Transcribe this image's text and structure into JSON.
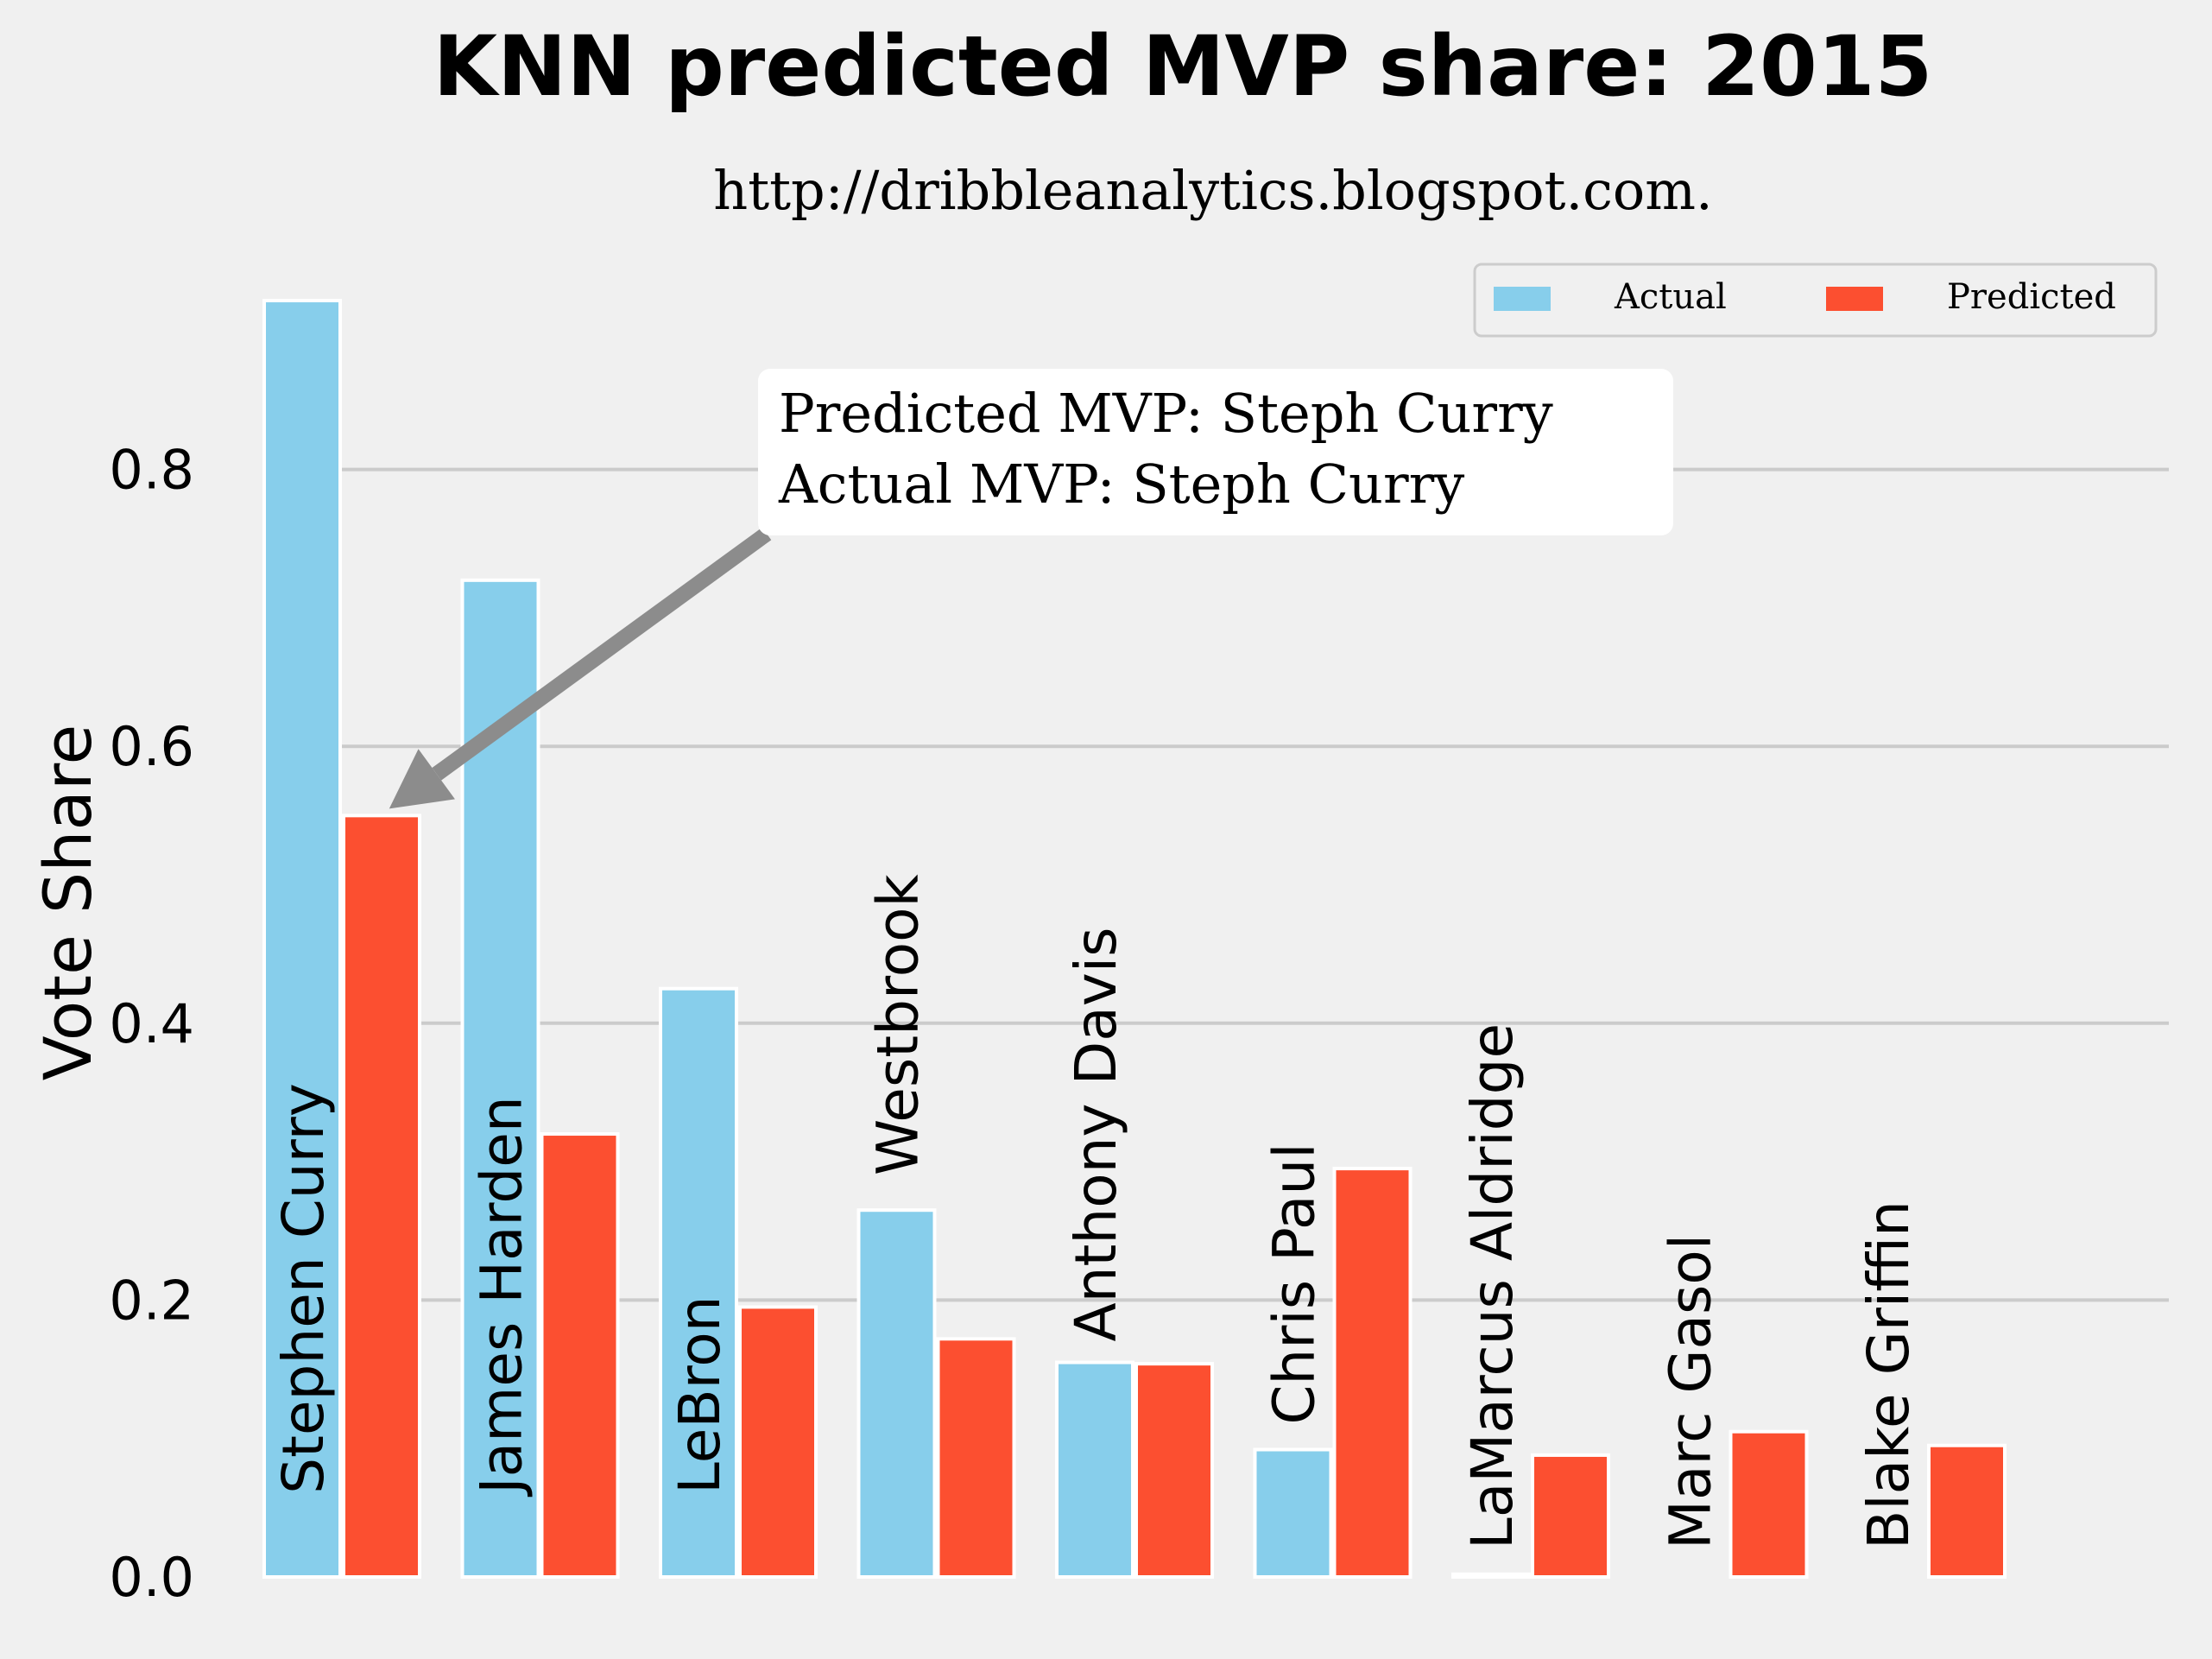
{
  "chart_data": {
    "type": "bar",
    "title": "KNN predicted MVP share: 2015",
    "subtitle": "http://dribbleanalytics.blogspot.com.",
    "xlabel": "",
    "ylabel": "Vote Share",
    "ylim": [
      0,
      0.98
    ],
    "yticks": [
      0.0,
      0.2,
      0.4,
      0.6,
      0.8
    ],
    "ytick_labels": [
      "0.0",
      "0.2",
      "0.4",
      "0.6",
      "0.8"
    ],
    "grid": "y",
    "legend_placement": "top-right",
    "categories": [
      "Stephen Curry",
      "James Harden",
      "LeBron",
      "Westbrook",
      "Anthony Davis",
      "Chris Paul",
      "LaMarcus Aldridge",
      "Marc Gasol",
      "Blake Griffin"
    ],
    "series": [
      {
        "name": "Actual",
        "color": "#87ceeb",
        "values": [
          0.922,
          0.72,
          0.425,
          0.265,
          0.155,
          0.092,
          0.002,
          0.0,
          0.0
        ]
      },
      {
        "name": "Predicted",
        "color": "#fc4f30",
        "values": [
          0.55,
          0.32,
          0.195,
          0.172,
          0.154,
          0.295,
          0.088,
          0.105,
          0.095
        ]
      }
    ],
    "label_anchor_values": [
      0.06,
      0.06,
      0.06,
      0.29,
      0.17,
      0.11,
      0.02,
      0.02,
      0.02
    ],
    "annotation": {
      "lines": [
        "Predicted MVP: Steph Curry",
        "Actual MVP: Steph Curry"
      ],
      "target_category": "Stephen Curry",
      "target_series": "Predicted"
    }
  }
}
